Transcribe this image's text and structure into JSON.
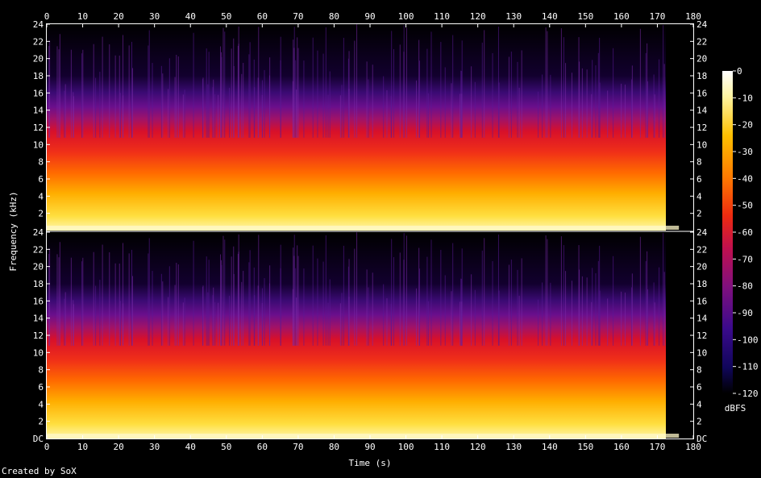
{
  "chart_data": {
    "type": "heatmap",
    "title": "",
    "xlabel": "Time (s)",
    "ylabel": "Frequency (kHz)",
    "colorbar_label": "dBFS",
    "xlim": [
      0,
      180
    ],
    "ylim": [
      0,
      24
    ],
    "x_ticks": [
      "0",
      "10",
      "20",
      "30",
      "40",
      "50",
      "60",
      "70",
      "80",
      "90",
      "100",
      "110",
      "120",
      "130",
      "140",
      "150",
      "160",
      "170",
      "180"
    ],
    "y_ticks": [
      "2",
      "4",
      "6",
      "8",
      "10",
      "12",
      "14",
      "16",
      "18",
      "20",
      "22",
      "24"
    ],
    "y_tick_bottom_channel_zero": "DC",
    "colorbar_ticks": [
      "0",
      "-10",
      "-20",
      "-30",
      "-40",
      "-50",
      "-60",
      "-70",
      "-80",
      "-90",
      "-100",
      "-110",
      "-120"
    ],
    "colorbar_range": [
      -120,
      0
    ],
    "channels": 2,
    "audio_duration_s": 176,
    "level_profile_khz_vs_dbfs": [
      [
        0,
        -5
      ],
      [
        2,
        -15
      ],
      [
        4,
        -25
      ],
      [
        6,
        -40
      ],
      [
        8,
        -48
      ],
      [
        10,
        -55
      ],
      [
        12,
        -65
      ],
      [
        14,
        -85
      ],
      [
        16,
        -100
      ],
      [
        18,
        -110
      ],
      [
        24,
        -120
      ]
    ]
  },
  "footer": "Created by SoX",
  "colors": {
    "background": "#000000",
    "text": "#ffffff"
  }
}
